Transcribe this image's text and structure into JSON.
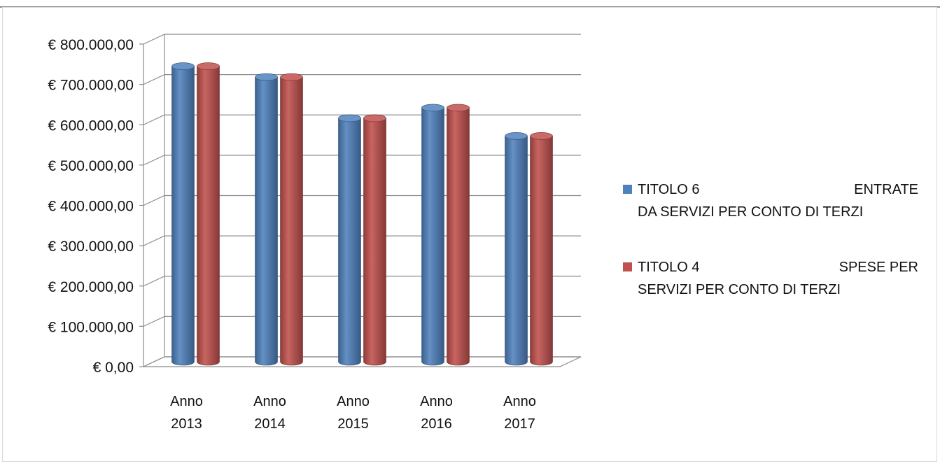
{
  "chart_data": {
    "type": "bar",
    "categories": [
      "Anno 2013",
      "Anno 2014",
      "Anno 2015",
      "Anno 2016",
      "Anno 2017"
    ],
    "category_lines": [
      [
        "Anno",
        "2013"
      ],
      [
        "Anno",
        "2014"
      ],
      [
        "Anno",
        "2015"
      ],
      [
        "Anno",
        "2016"
      ],
      [
        "Anno",
        "2017"
      ]
    ],
    "series": [
      {
        "name": "TITOLO 6 ENTRATE DA SERVIZI PER CONTO DI TERZI",
        "color": "#4f81bd",
        "values": [
          733000,
          706000,
          604000,
          630000,
          560000
        ]
      },
      {
        "name": "TITOLO 4 SPESE PER SERVIZI PER CONTO DI TERZI",
        "color": "#c0504d",
        "values": [
          733000,
          706000,
          604000,
          630000,
          560000
        ]
      }
    ],
    "ylim": [
      0,
      800000
    ],
    "yticks": [
      0,
      100000,
      200000,
      300000,
      400000,
      500000,
      600000,
      700000,
      800000
    ],
    "ytick_labels": [
      "€ 0,00",
      "€ 100.000,00",
      "€ 200.000,00",
      "€ 300.000,00",
      "€ 400.000,00",
      "€ 500.000,00",
      "€ 600.000,00",
      "€ 700.000,00",
      "€ 800.000,00"
    ],
    "grid": true,
    "legend_position": "right",
    "style": "3d-cylinder"
  },
  "legend": [
    {
      "word": "TITOLO 6",
      "right": "ENTRATE",
      "line2": "DA SERVIZI PER CONTO DI TERZI",
      "color": "#4f81bd",
      "icon": "square-swatch-icon"
    },
    {
      "word": "TITOLO 4",
      "right": "SPESE PER",
      "line2": "SERVIZI PER CONTO DI TERZI",
      "color": "#c0504d",
      "icon": "square-swatch-icon"
    }
  ]
}
